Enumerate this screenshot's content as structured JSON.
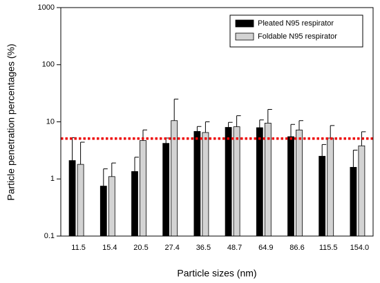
{
  "chart_data": {
    "type": "bar",
    "x_label": "Particle sizes (nm)",
    "y_label": "Particle penetration percentages (%)",
    "categories": [
      "11.5",
      "15.4",
      "20.5",
      "27.4",
      "36.5",
      "48.7",
      "64.9",
      "86.6",
      "115.5",
      "154.0"
    ],
    "series": [
      {
        "name": "Pleated N95 respirator",
        "color": "#000000",
        "values": [
          2.1,
          0.75,
          1.35,
          4.2,
          6.8,
          8.0,
          7.9,
          5.5,
          2.5,
          1.6
        ],
        "errors": [
          3.2,
          0.75,
          1.05,
          1.0,
          1.5,
          1.8,
          2.9,
          3.5,
          1.5,
          1.6
        ]
      },
      {
        "name": "Foldable N95 respirator",
        "color": "#d3d3d3",
        "values": [
          1.8,
          1.1,
          4.7,
          10.5,
          6.5,
          8.2,
          9.5,
          7.2,
          5.2,
          3.8
        ],
        "errors": [
          2.6,
          0.8,
          2.5,
          14.5,
          3.5,
          4.6,
          7.0,
          3.3,
          3.4,
          2.9
        ]
      }
    ],
    "reference_line": 5.1,
    "reference_color": "#ee0000",
    "log_scale": true,
    "ylim": [
      0.1,
      1000
    ],
    "yticks": [
      {
        "value": 0.1,
        "label": "0.1"
      },
      1,
      10,
      100,
      1000
    ],
    "legend": "top-right"
  }
}
